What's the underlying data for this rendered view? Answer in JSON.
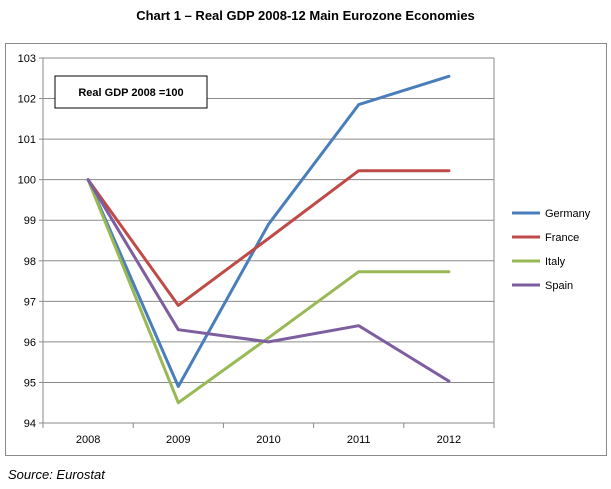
{
  "title": "Chart 1 – Real GDP 2008-12 Main Eurozone Economies",
  "source": "Source: Eurostat",
  "chart_data": {
    "type": "line",
    "title": "Chart 1 – Real GDP 2008-12 Main Eurozone Economies",
    "annotation": "Real GDP 2008 =100",
    "x": [
      "2008",
      "2009",
      "2010",
      "2011",
      "2012"
    ],
    "ylim": [
      94,
      103
    ],
    "yticks": [
      "94",
      "95",
      "96",
      "97",
      "98",
      "99",
      "100",
      "101",
      "102",
      "103"
    ],
    "grid": true,
    "legend_position": "right",
    "series": [
      {
        "name": "Germany",
        "color": "#4A7EBB",
        "values": [
          100,
          94.9,
          98.9,
          101.85,
          102.55
        ]
      },
      {
        "name": "France",
        "color": "#BE4B48",
        "values": [
          100,
          96.9,
          98.55,
          100.22,
          100.22
        ]
      },
      {
        "name": "Italy",
        "color": "#98B954",
        "values": [
          100,
          94.5,
          96.1,
          97.73,
          97.73
        ]
      },
      {
        "name": "Spain",
        "color": "#7D5FA0",
        "values": [
          100,
          96.3,
          96.0,
          96.4,
          95.03
        ]
      }
    ]
  }
}
